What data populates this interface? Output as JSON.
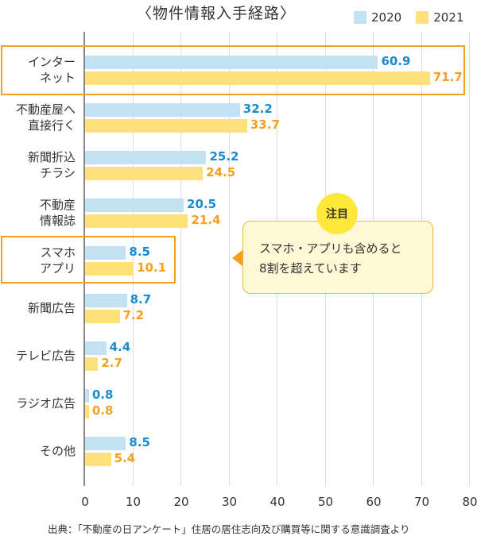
{
  "chart_data": {
    "type": "bar",
    "orientation": "horizontal",
    "title": "〈物件情報入手経路〉",
    "categories": [
      "インターネット",
      "不動産屋へ直接行く",
      "新聞折込チラシ",
      "不動産情報誌",
      "スマホアプリ",
      "新聞広告",
      "テレビ広告",
      "ラジオ広告",
      "その他"
    ],
    "category_lines": [
      [
        "インター",
        "ネット"
      ],
      [
        "不動産屋へ",
        "直接行く"
      ],
      [
        "新聞折込",
        "チラシ"
      ],
      [
        "不動産",
        "情報誌"
      ],
      [
        "スマホ",
        "アプリ"
      ],
      [
        "新聞広告"
      ],
      [
        "テレビ広告"
      ],
      [
        "ラジオ広告"
      ],
      [
        "その他"
      ]
    ],
    "series": [
      {
        "name": "2020",
        "color": "#c2e2f4",
        "label_color": "#1a8bd0",
        "values": [
          60.9,
          32.2,
          25.2,
          20.5,
          8.5,
          8.7,
          4.4,
          0.8,
          8.5
        ]
      },
      {
        "name": "2021",
        "color": "#ffe07a",
        "label_color": "#f3a01e",
        "values": [
          71.7,
          33.7,
          24.5,
          21.4,
          10.1,
          7.2,
          2.7,
          0.8,
          5.4
        ]
      }
    ],
    "xlabel": "",
    "ylabel": "",
    "xlim": [
      0,
      80
    ],
    "xticks": [
      "0",
      "10",
      "20",
      "30",
      "40",
      "50",
      "60",
      "70",
      "80"
    ],
    "grid": true,
    "legend_position": "top-right",
    "highlighted_categories": [
      "インターネット",
      "スマホアプリ"
    ],
    "annotation": {
      "badge": "注目",
      "text_lines": [
        "スマホ・アプリも含めると",
        "8割を超えています"
      ]
    },
    "source": "出典：「不動産の日アンケート」住居の居住志向及び購買等に関する意識調査より"
  }
}
